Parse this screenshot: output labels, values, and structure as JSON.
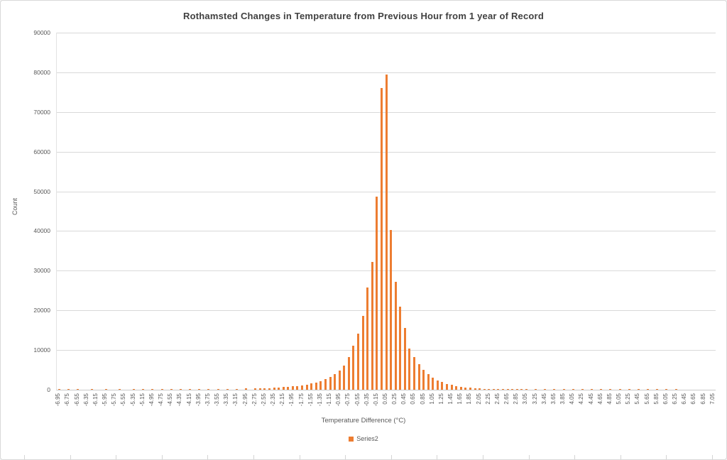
{
  "chart_data": {
    "type": "bar",
    "title": "Rothamsted Changes in Temperature from Previous Hour from 1 year of Record",
    "xlabel": "Temperature Difference (°C)",
    "ylabel": "Count",
    "legend": [
      "Series2"
    ],
    "legend_position": "bottom",
    "grid": true,
    "bar_color": "#ED7D31",
    "ylim": [
      0,
      90000
    ],
    "y_tick_step": 10000,
    "x_start": -6.95,
    "x_step": 0.1,
    "x_label_every": 2,
    "x_decimals": 2,
    "values": [
      120,
      0,
      80,
      0,
      100,
      0,
      0,
      90,
      0,
      0,
      110,
      0,
      0,
      100,
      0,
      0,
      120,
      0,
      90,
      0,
      130,
      0,
      100,
      0,
      110,
      0,
      120,
      0,
      130,
      0,
      150,
      0,
      170,
      0,
      190,
      0,
      210,
      0,
      240,
      0,
      280,
      0,
      330,
      360,
      400,
      450,
      500,
      560,
      640,
      730,
      830,
      950,
      1100,
      1300,
      1550,
      1850,
      2200,
      2650,
      3200,
      3900,
      4800,
      6100,
      8300,
      11100,
      14100,
      18600,
      25700,
      32200,
      48700,
      76000,
      79500,
      40300,
      27200,
      21000,
      15600,
      10400,
      8200,
      6400,
      5000,
      3900,
      3000,
      2400,
      1900,
      1500,
      1200,
      950,
      760,
      600,
      480,
      380,
      300,
      240,
      190,
      150,
      120,
      100,
      80,
      65,
      55,
      45,
      38,
      0,
      27,
      0,
      18,
      0,
      13,
      0,
      9,
      0,
      7,
      0,
      5,
      0,
      4,
      0,
      3,
      0,
      3,
      0,
      2,
      0,
      2,
      0,
      1,
      0,
      1,
      0,
      150,
      0,
      1,
      0,
      1,
      0,
      0,
      0,
      0,
      0,
      0,
      0,
      0
    ]
  }
}
